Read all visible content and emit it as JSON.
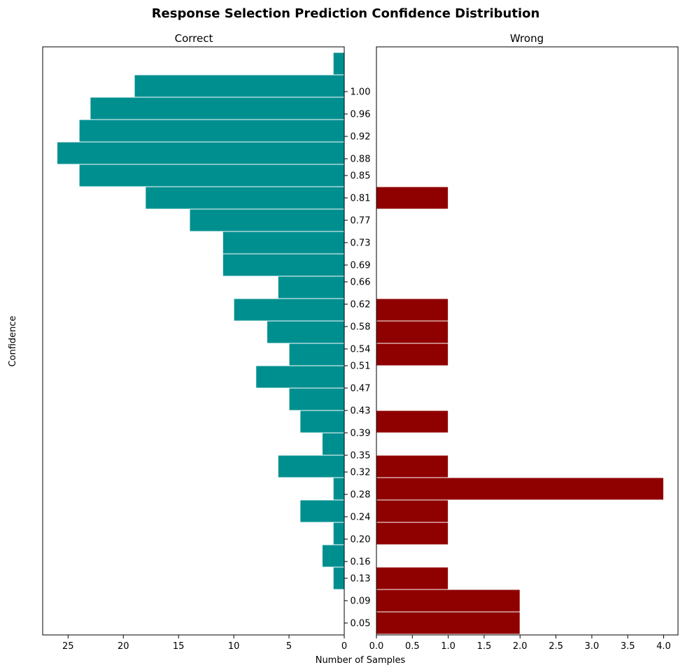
{
  "title": "Response Selection Prediction Confidence Distribution",
  "ylabel": "Confidence",
  "xlabel": "Number of Samples",
  "chart_data": [
    {
      "type": "bar",
      "orientation": "horizontal",
      "direction": "right-to-left",
      "subtitle": "Correct",
      "color": "#008f8f",
      "xlim": [
        27.3,
        0
      ],
      "x_ticks": [
        25,
        20,
        15,
        10,
        5,
        0
      ],
      "bins": [
        {
          "low": 0.03,
          "high": 0.07,
          "count": 0
        },
        {
          "low": 0.07,
          "high": 0.11,
          "count": 0
        },
        {
          "low": 0.11,
          "high": 0.15,
          "count": 1
        },
        {
          "low": 0.15,
          "high": 0.19,
          "count": 2
        },
        {
          "low": 0.19,
          "high": 0.23,
          "count": 1
        },
        {
          "low": 0.23,
          "high": 0.27,
          "count": 4
        },
        {
          "low": 0.27,
          "high": 0.31,
          "count": 1
        },
        {
          "low": 0.31,
          "high": 0.35,
          "count": 6
        },
        {
          "low": 0.35,
          "high": 0.39,
          "count": 2
        },
        {
          "low": 0.39,
          "high": 0.43,
          "count": 4
        },
        {
          "low": 0.43,
          "high": 0.47,
          "count": 5
        },
        {
          "low": 0.47,
          "high": 0.51,
          "count": 8
        },
        {
          "low": 0.51,
          "high": 0.55,
          "count": 5
        },
        {
          "low": 0.55,
          "high": 0.59,
          "count": 7
        },
        {
          "low": 0.59,
          "high": 0.63,
          "count": 10
        },
        {
          "low": 0.63,
          "high": 0.67,
          "count": 6
        },
        {
          "low": 0.67,
          "high": 0.71,
          "count": 11
        },
        {
          "low": 0.71,
          "high": 0.75,
          "count": 11
        },
        {
          "low": 0.75,
          "high": 0.79,
          "count": 14
        },
        {
          "low": 0.79,
          "high": 0.83,
          "count": 18
        },
        {
          "low": 0.83,
          "high": 0.87,
          "count": 24
        },
        {
          "low": 0.87,
          "high": 0.91,
          "count": 26
        },
        {
          "low": 0.91,
          "high": 0.95,
          "count": 24
        },
        {
          "low": 0.95,
          "high": 0.99,
          "count": 23
        },
        {
          "low": 0.99,
          "high": 1.03,
          "count": 19
        },
        {
          "low": 1.03,
          "high": 1.07,
          "count": 1
        }
      ]
    },
    {
      "type": "bar",
      "orientation": "horizontal",
      "direction": "left-to-right",
      "subtitle": "Wrong",
      "color": "#8f0000",
      "xlim": [
        0,
        4.2
      ],
      "x_ticks": [
        "0.0",
        "0.5",
        "1.0",
        "1.5",
        "2.0",
        "2.5",
        "3.0",
        "3.5",
        "4.0"
      ],
      "bins": [
        {
          "low": 0.03,
          "high": 0.07,
          "count": 2
        },
        {
          "low": 0.07,
          "high": 0.11,
          "count": 2
        },
        {
          "low": 0.11,
          "high": 0.15,
          "count": 1
        },
        {
          "low": 0.15,
          "high": 0.19,
          "count": 0
        },
        {
          "low": 0.19,
          "high": 0.23,
          "count": 1
        },
        {
          "low": 0.23,
          "high": 0.27,
          "count": 1
        },
        {
          "low": 0.27,
          "high": 0.31,
          "count": 4
        },
        {
          "low": 0.31,
          "high": 0.35,
          "count": 1
        },
        {
          "low": 0.35,
          "high": 0.39,
          "count": 0
        },
        {
          "low": 0.39,
          "high": 0.43,
          "count": 1
        },
        {
          "low": 0.43,
          "high": 0.47,
          "count": 0
        },
        {
          "low": 0.47,
          "high": 0.51,
          "count": 0
        },
        {
          "low": 0.51,
          "high": 0.55,
          "count": 1
        },
        {
          "low": 0.55,
          "high": 0.59,
          "count": 1
        },
        {
          "low": 0.59,
          "high": 0.63,
          "count": 1
        },
        {
          "low": 0.63,
          "high": 0.67,
          "count": 0
        },
        {
          "low": 0.67,
          "high": 0.71,
          "count": 0
        },
        {
          "low": 0.71,
          "high": 0.75,
          "count": 0
        },
        {
          "low": 0.75,
          "high": 0.79,
          "count": 0
        },
        {
          "low": 0.79,
          "high": 0.83,
          "count": 1
        },
        {
          "low": 0.83,
          "high": 0.87,
          "count": 0
        },
        {
          "low": 0.87,
          "high": 0.91,
          "count": 0
        },
        {
          "low": 0.91,
          "high": 0.95,
          "count": 0
        },
        {
          "low": 0.95,
          "high": 0.99,
          "count": 0
        },
        {
          "low": 0.99,
          "high": 1.03,
          "count": 0
        },
        {
          "low": 1.03,
          "high": 1.07,
          "count": 0
        }
      ]
    }
  ],
  "y_tick_labels": [
    "0.05",
    "0.09",
    "0.13",
    "0.16",
    "0.20",
    "0.24",
    "0.28",
    "0.32",
    "0.35",
    "0.39",
    "0.43",
    "0.47",
    "0.51",
    "0.54",
    "0.58",
    "0.62",
    "0.66",
    "0.69",
    "0.73",
    "0.77",
    "0.81",
    "0.85",
    "0.88",
    "0.92",
    "0.96",
    "1.00"
  ]
}
